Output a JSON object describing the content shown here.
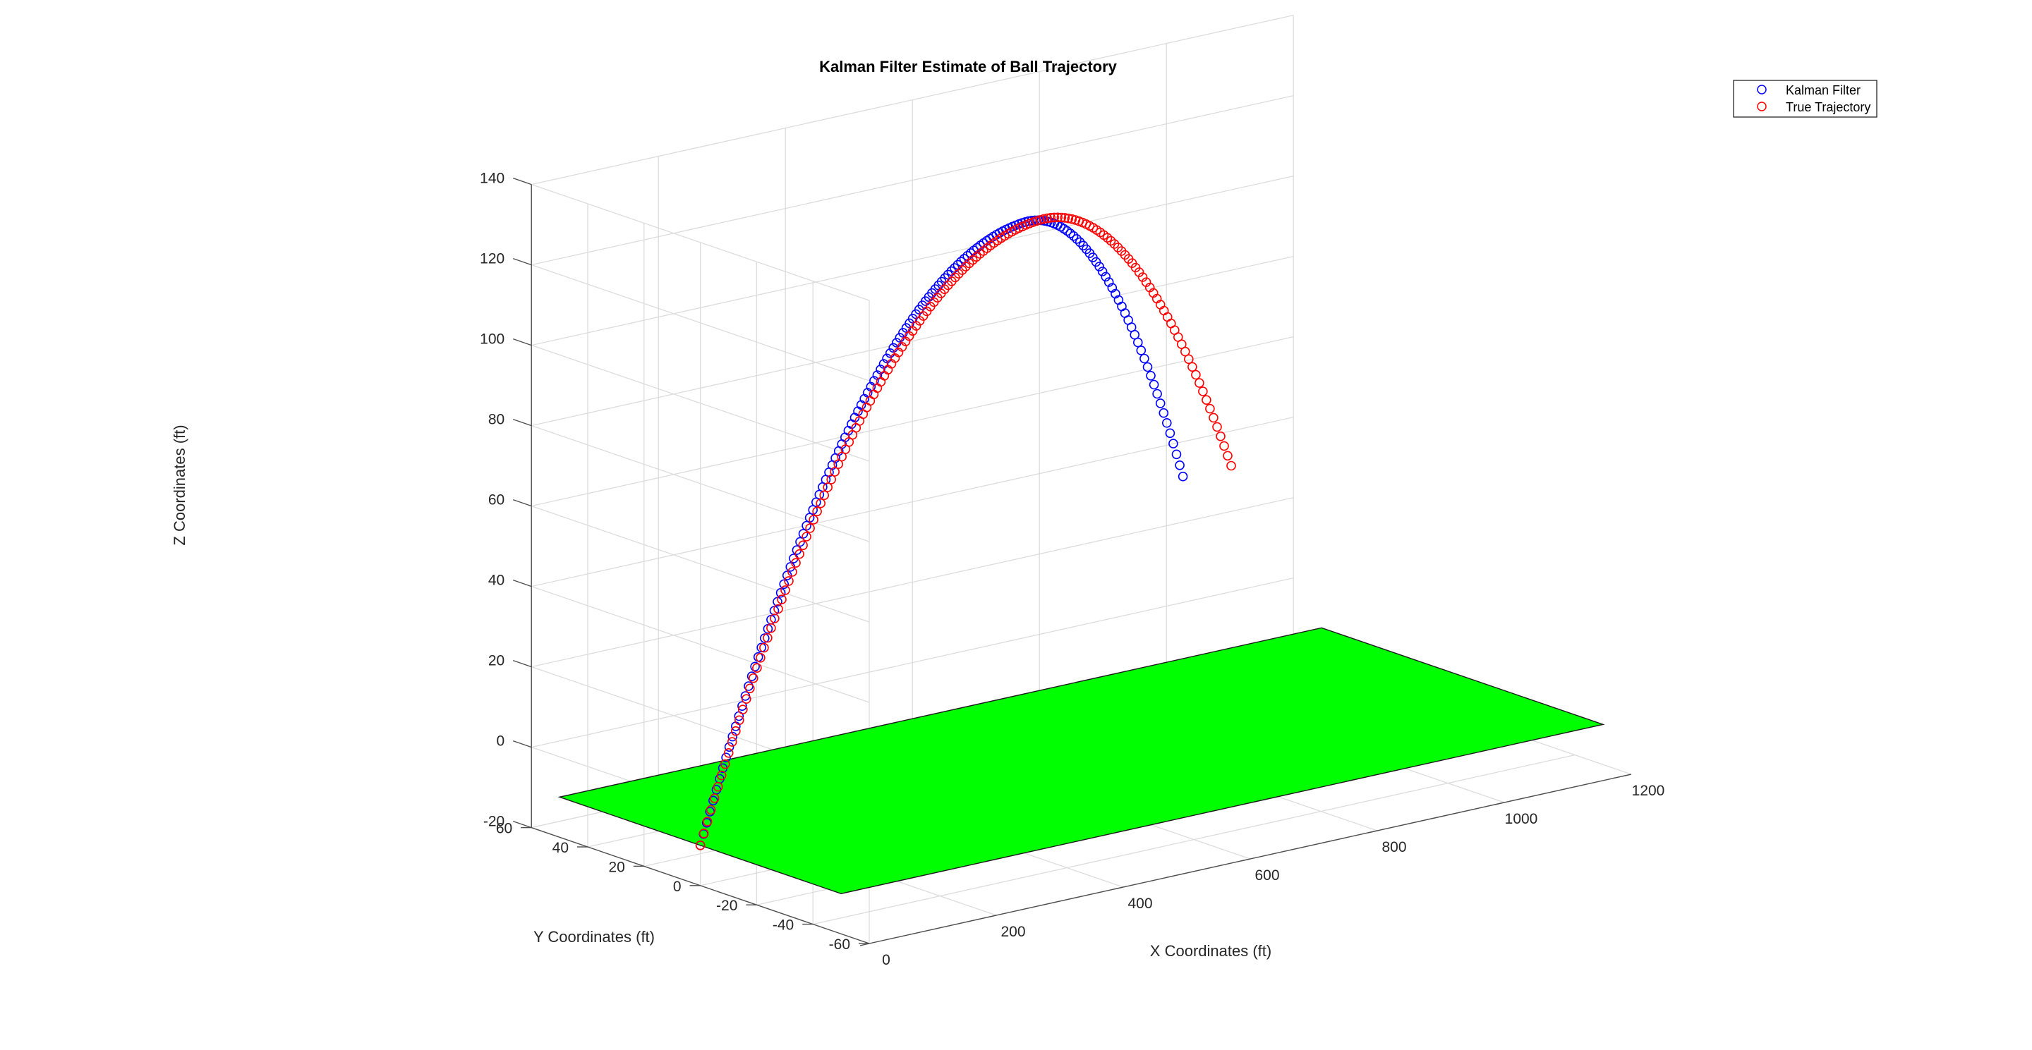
{
  "chart_data": {
    "type": "scatter3d",
    "title": "Kalman Filter Estimate of Ball Trajectory",
    "xlabel": "X Coordinates (ft)",
    "ylabel": "Y Coordinates (ft)",
    "zlabel": "Z Coordinates (ft)",
    "xlim": [
      0,
      1200
    ],
    "ylim": [
      -60,
      60
    ],
    "zlim": [
      -20,
      140
    ],
    "xticks": [
      0,
      200,
      400,
      600,
      800,
      1000,
      1200
    ],
    "yticks": [
      -60,
      -40,
      -20,
      0,
      20,
      40,
      60
    ],
    "zticks": [
      -20,
      0,
      20,
      40,
      60,
      80,
      100,
      120,
      140
    ],
    "grid": true,
    "legend_position": "top-right",
    "marker": "open-circle",
    "ground_plane": {
      "name": "ground",
      "color": "#00ff00",
      "z": -10,
      "x_range": [
        0,
        1200
      ],
      "y_range": [
        -50,
        50
      ]
    },
    "series": [
      {
        "name": "Kalman Filter",
        "color": "#0000ff",
        "start": {
          "x": 0,
          "y": 0,
          "z": -10
        },
        "apex": {
          "x": 580,
          "y": 15,
          "z": 121
        },
        "end": {
          "x": 862,
          "y": 23,
          "z": 46
        }
      },
      {
        "name": "True Trajectory",
        "color": "#ff0000",
        "start": {
          "x": 0,
          "y": 0,
          "z": -10
        },
        "apex": {
          "x": 600,
          "y": 15,
          "z": 121
        },
        "end": {
          "x": 938,
          "y": 23,
          "z": 46
        }
      }
    ]
  }
}
